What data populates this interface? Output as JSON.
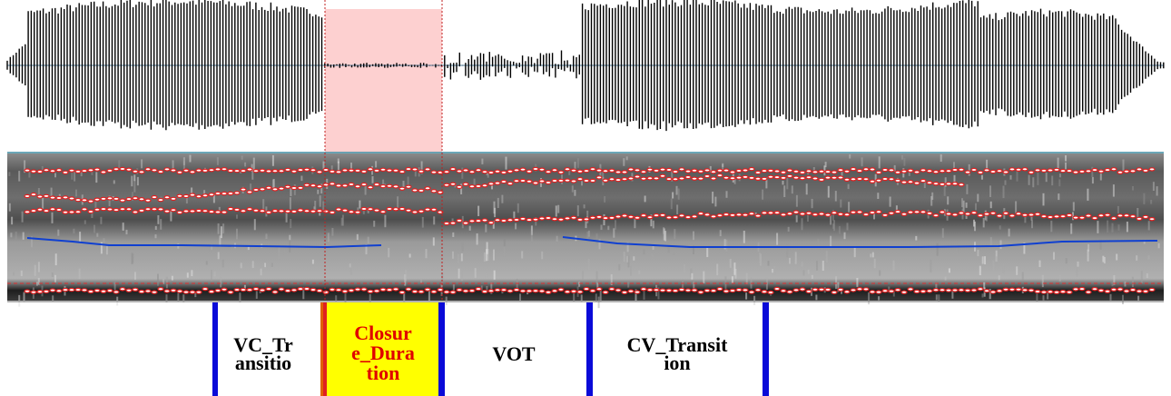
{
  "tier": {
    "intervals": [
      {
        "lines": [
          "VC_Tr",
          "ansitio"
        ]
      },
      {
        "lines": [
          "Closur",
          "e_Dura",
          "tion"
        ]
      },
      {
        "lines": [
          "VOT"
        ]
      },
      {
        "lines": [
          "CV_Transit",
          "ion"
        ]
      }
    ]
  }
}
